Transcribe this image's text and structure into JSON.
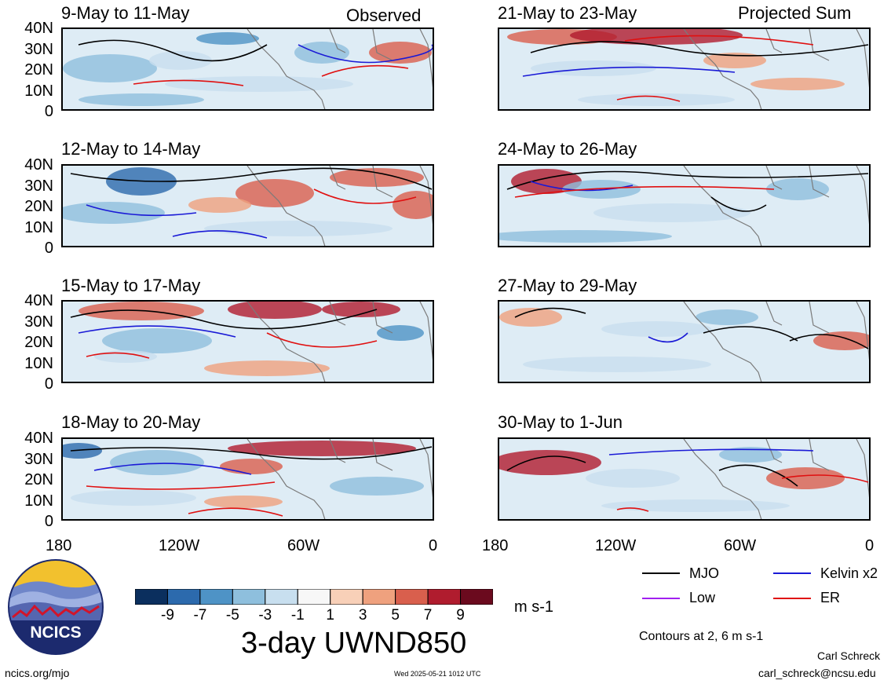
{
  "header": {
    "observed_label": "Observed",
    "projected_label": "Projected Sum"
  },
  "panels": {
    "left": [
      {
        "title": "9-May to 11-May"
      },
      {
        "title": "12-May to 14-May"
      },
      {
        "title": "15-May to 17-May"
      },
      {
        "title": "18-May to 20-May"
      }
    ],
    "right": [
      {
        "title": "21-May to 23-May"
      },
      {
        "title": "24-May to 26-May"
      },
      {
        "title": "27-May to 29-May"
      },
      {
        "title": "30-May to 1-Jun"
      }
    ]
  },
  "axes": {
    "y_ticks": [
      "40N",
      "30N",
      "20N",
      "10N",
      "0"
    ],
    "x_ticks": [
      "180",
      "120W",
      "60W",
      "0"
    ]
  },
  "colorbar": {
    "labels": [
      "-9",
      "-7",
      "-5",
      "-3",
      "-1",
      "1",
      "3",
      "5",
      "7",
      "9"
    ],
    "colors": [
      "#0b2f5e",
      "#2c6aad",
      "#4e93c6",
      "#8ebfdd",
      "#c8dfef",
      "#f7f7f7",
      "#f8d0b8",
      "#efa17e",
      "#d95f4d",
      "#b01c2e",
      "#6b0a1e"
    ],
    "units": "m s-1",
    "title": "3-day UWND850"
  },
  "legend": {
    "items": [
      {
        "label": "MJO",
        "color": "#000000"
      },
      {
        "label": "Kelvin x2",
        "color": "#1a1ad6"
      },
      {
        "label": "Low",
        "color": "#a020f0"
      },
      {
        "label": "ER",
        "color": "#e01010"
      }
    ],
    "note": "Contours at 2, 6 m s-1"
  },
  "logo": {
    "text": "NCICS"
  },
  "footer": {
    "url": "ncics.org/mjo",
    "timestamp": "Wed 2025-05-21 1012 UTC",
    "author": "Carl Schreck",
    "email": "carl_schreck@ncsu.edu"
  }
}
